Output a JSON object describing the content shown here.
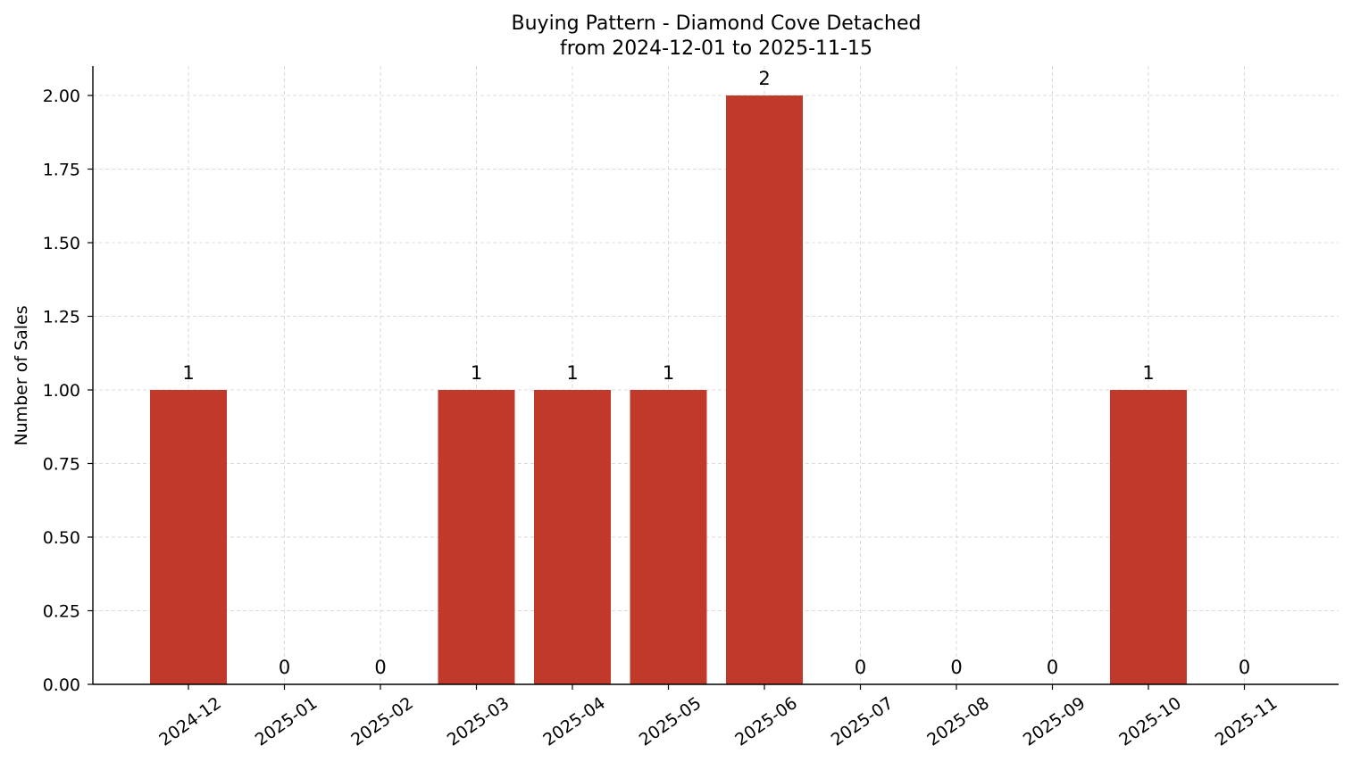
{
  "chart_data": {
    "type": "bar",
    "title": "Buying Pattern - Diamond Cove Detached",
    "subtitle": "from 2024-12-01 to 2025-11-15",
    "xlabel": "",
    "ylabel": "Number of Sales",
    "categories": [
      "2024-12",
      "2025-01",
      "2025-02",
      "2025-03",
      "2025-04",
      "2025-05",
      "2025-06",
      "2025-07",
      "2025-08",
      "2025-09",
      "2025-10",
      "2025-11"
    ],
    "values": [
      1,
      0,
      0,
      1,
      1,
      1,
      2,
      0,
      0,
      0,
      1,
      0
    ],
    "data_labels": [
      "1",
      "0",
      "0",
      "1",
      "1",
      "1",
      "2",
      "0",
      "0",
      "0",
      "1",
      "0"
    ],
    "ylim": [
      0,
      2.1
    ],
    "yticks": [
      0,
      0.25,
      0.5,
      0.75,
      1.0,
      1.25,
      1.5,
      1.75,
      2.0
    ],
    "ytick_labels": [
      "0.00",
      "0.25",
      "0.50",
      "0.75",
      "1.00",
      "1.25",
      "1.50",
      "1.75",
      "2.00"
    ],
    "bar_color": "#c0392b",
    "grid": true,
    "legend": "none"
  }
}
